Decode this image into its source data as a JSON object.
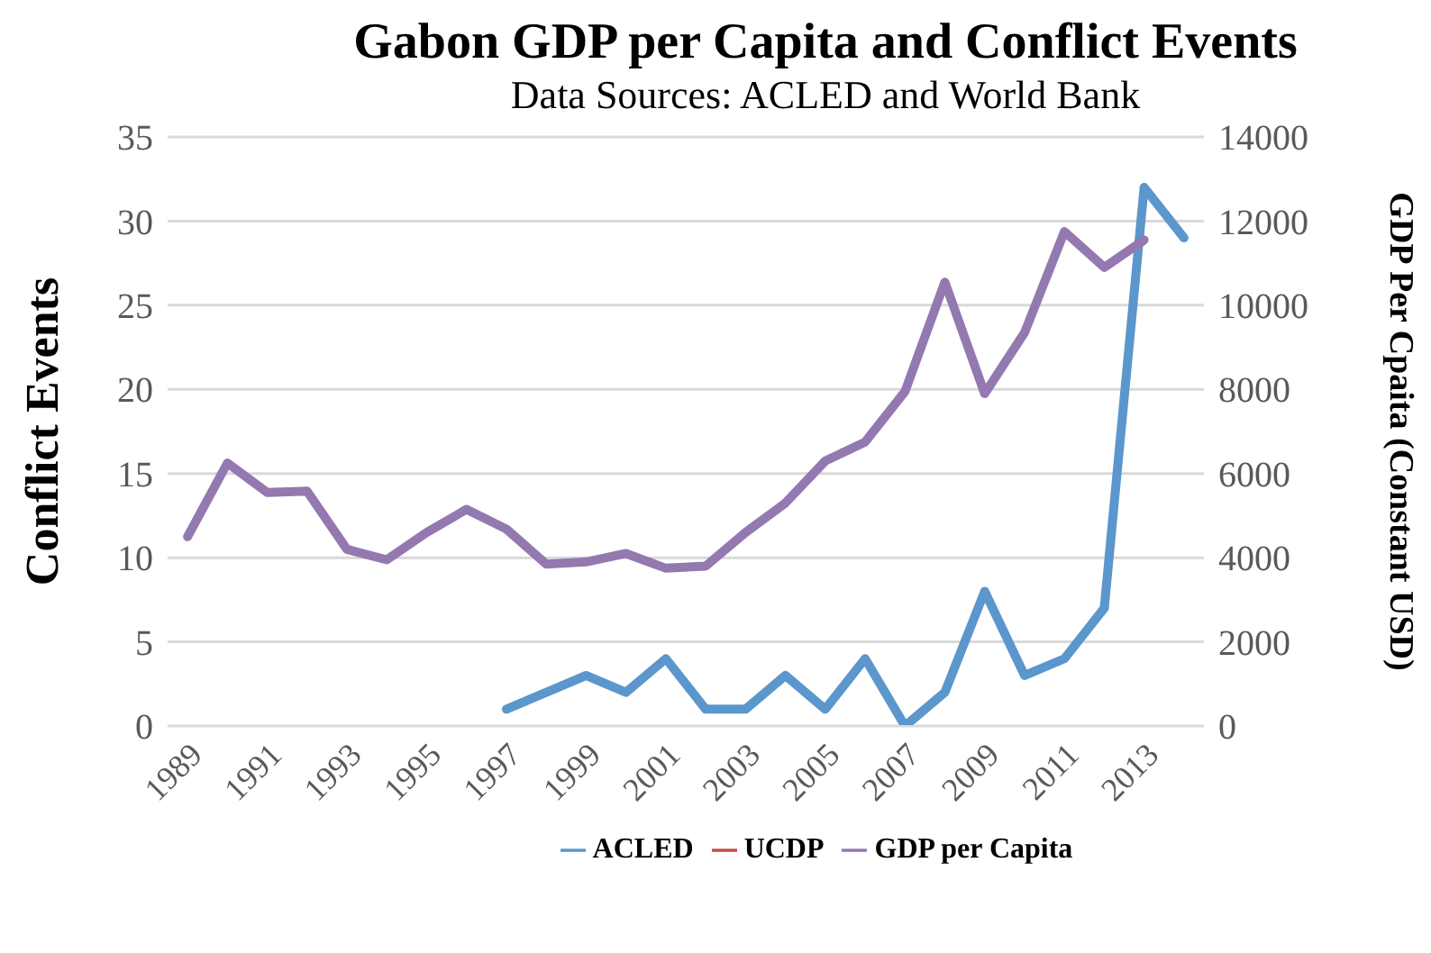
{
  "chart_data": {
    "type": "line",
    "title": "Gabon GDP per Capita and Conflict Events",
    "subtitle": "Data Sources: ACLED and World Bank",
    "ylabel": "Conflict Events",
    "y2label": "GDP Per Cpaita (Constant USD)",
    "categories": [
      "1989",
      null,
      "1991",
      null,
      "1993",
      null,
      "1995",
      null,
      "1997",
      null,
      "1999",
      null,
      "2001",
      null,
      "2003",
      null,
      "2005",
      null,
      "2007",
      null,
      "2009",
      null,
      "2011",
      null,
      "2013",
      null
    ],
    "series": [
      {
        "name": "ACLED",
        "color": "#5b96cc",
        "values": [
          null,
          null,
          null,
          null,
          null,
          null,
          null,
          null,
          1,
          2,
          3,
          2,
          4,
          1,
          1,
          3,
          1,
          4,
          0,
          2,
          8,
          3,
          4,
          7,
          32,
          29
        ]
      },
      {
        "name": "UCDP",
        "color": "#c0504d",
        "values": [
          null,
          null,
          null,
          null,
          null,
          null,
          null,
          null,
          null,
          null,
          null,
          null,
          null,
          null,
          null,
          null,
          null,
          null,
          null,
          null,
          null,
          null,
          null,
          null,
          null,
          null
        ]
      },
      {
        "name": "GDP per Capita",
        "color": "#9479b1",
        "axis": "y2",
        "values": [
          4500,
          6250,
          5550,
          5580,
          4200,
          3950,
          4600,
          5150,
          4680,
          3850,
          3900,
          4100,
          3750,
          3800,
          4600,
          5300,
          6300,
          6750,
          7950,
          10550,
          7900,
          9350,
          11750,
          10900,
          11550,
          null
        ]
      }
    ],
    "ylim": [
      0,
      35
    ],
    "yticks": [
      0,
      5,
      10,
      15,
      20,
      25,
      30,
      35
    ],
    "y2lim": [
      0,
      14000
    ],
    "y2ticks": [
      0,
      2000,
      4000,
      6000,
      8000,
      10000,
      12000,
      14000
    ],
    "grid": "y",
    "legend": "bottom",
    "marker": "none",
    "line_style": "solid"
  }
}
